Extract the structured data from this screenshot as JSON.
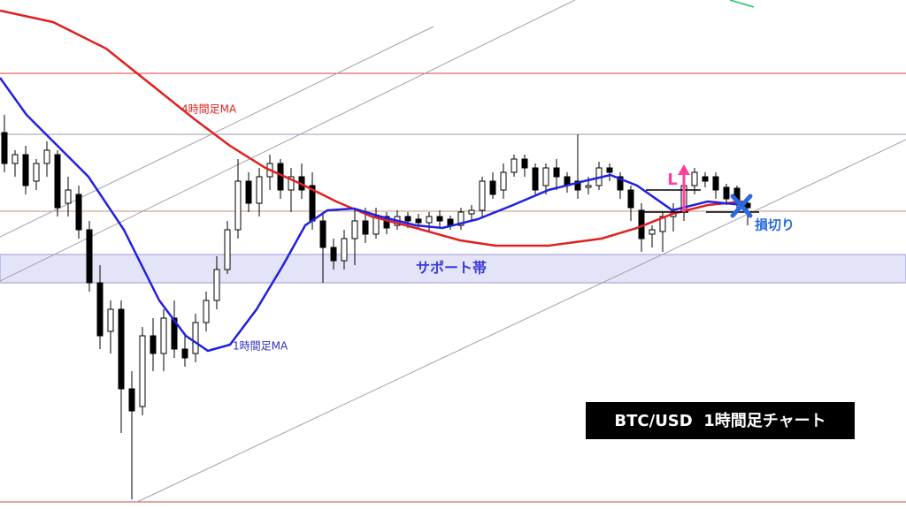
{
  "title": "BTC/USD  1時間足チャート",
  "labels": {
    "ma_4h": "4時間足MA",
    "ma_1h": "1時間足MA",
    "support": "サポート帯",
    "entry": "L",
    "stop": "損切り"
  }
}
